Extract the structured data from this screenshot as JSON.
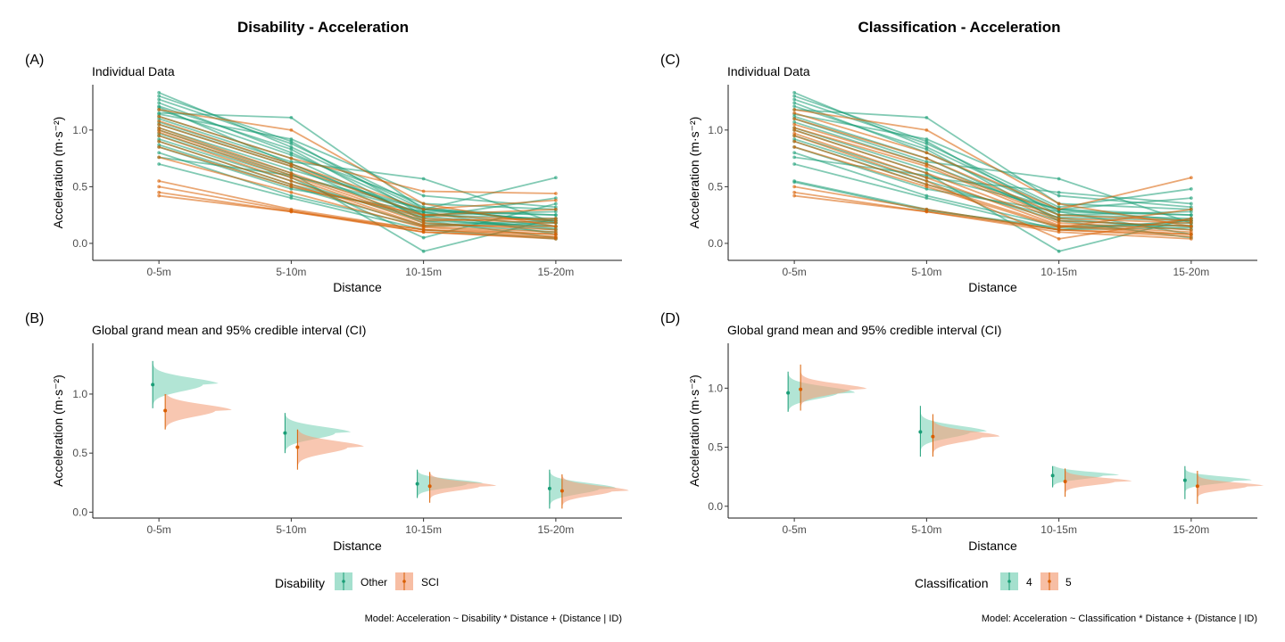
{
  "colors": {
    "other": "#1b9e77",
    "sci": "#d95f02",
    "other_fill": "#7fd3b9",
    "sci_fill": "#f4a27d"
  },
  "left": {
    "title": "Disability - Acceleration",
    "caption": "Model: Acceleration ~ Disability * Distance + (Distance | ID)",
    "legend": {
      "title": "Disability",
      "items": [
        "Other",
        "SCI"
      ]
    }
  },
  "right": {
    "title": "Classification - Acceleration",
    "caption": "Model: Acceleration ~ Classification * Distance + (Distance | ID)",
    "legend": {
      "title": "Classification",
      "items": [
        "4",
        "5"
      ]
    }
  },
  "chart_data": [
    {
      "id": "A",
      "tag": "(A)",
      "type": "line",
      "subtitle": "Individual Data",
      "xlabel": "Distance",
      "ylabel": "Acceleration (m·s⁻²)",
      "categories": [
        "0-5m",
        "5-10m",
        "10-15m",
        "15-20m"
      ],
      "ylim": [
        -0.15,
        1.4
      ],
      "yticks": [
        0.0,
        0.5,
        1.0
      ],
      "ytick_labels": [
        "0.0",
        "0.5",
        "1.0"
      ],
      "series": [
        {
          "group": "Other",
          "values": [
            1.33,
            0.85,
            0.3,
            0.2
          ]
        },
        {
          "group": "Other",
          "values": [
            1.3,
            0.9,
            0.25,
            0.22
          ]
        },
        {
          "group": "Other",
          "values": [
            1.27,
            0.88,
            0.32,
            0.18
          ]
        },
        {
          "group": "Other",
          "values": [
            1.24,
            0.8,
            0.28,
            0.25
          ]
        },
        {
          "group": "Other",
          "values": [
            1.21,
            0.83,
            0.2,
            0.15
          ]
        },
        {
          "group": "Other",
          "values": [
            1.18,
            0.78,
            0.35,
            0.3
          ]
        },
        {
          "group": "Other",
          "values": [
            1.15,
            1.11,
            0.3,
            0.2
          ]
        },
        {
          "group": "Other",
          "values": [
            1.12,
            0.75,
            0.22,
            0.12
          ]
        },
        {
          "group": "Other",
          "values": [
            1.1,
            0.72,
            0.57,
            0.18
          ]
        },
        {
          "group": "Other",
          "values": [
            1.07,
            0.7,
            0.25,
            0.28
          ]
        },
        {
          "group": "Other",
          "values": [
            1.05,
            0.68,
            0.18,
            0.1
          ]
        },
        {
          "group": "Other",
          "values": [
            1.02,
            0.65,
            0.3,
            0.58
          ]
        },
        {
          "group": "Other",
          "values": [
            1.0,
            0.62,
            -0.07,
            0.22
          ]
        },
        {
          "group": "Other",
          "values": [
            0.97,
            0.6,
            0.27,
            0.15
          ]
        },
        {
          "group": "Other",
          "values": [
            0.95,
            0.58,
            0.05,
            0.35
          ]
        },
        {
          "group": "Other",
          "values": [
            0.92,
            0.55,
            0.2,
            0.05
          ]
        },
        {
          "group": "Other",
          "values": [
            0.9,
            0.52,
            0.23,
            0.4
          ]
        },
        {
          "group": "Other",
          "values": [
            0.87,
            0.5,
            0.16,
            0.2
          ]
        },
        {
          "group": "Other",
          "values": [
            0.85,
            0.48,
            0.28,
            0.08
          ]
        },
        {
          "group": "Other",
          "values": [
            0.8,
            0.42,
            0.15,
            0.18
          ]
        },
        {
          "group": "Other",
          "values": [
            0.76,
            0.6,
            0.3,
            0.25
          ]
        },
        {
          "group": "Other",
          "values": [
            0.7,
            0.4,
            0.12,
            0.04
          ]
        },
        {
          "group": "Other",
          "values": [
            1.14,
            0.92,
            0.42,
            0.32
          ]
        },
        {
          "group": "Other",
          "values": [
            1.2,
            0.7,
            0.24,
            0.13
          ]
        },
        {
          "group": "SCI",
          "values": [
            1.18,
            1.0,
            0.35,
            0.15
          ]
        },
        {
          "group": "SCI",
          "values": [
            1.12,
            0.75,
            0.46,
            0.44
          ]
        },
        {
          "group": "SCI",
          "values": [
            1.08,
            0.7,
            0.3,
            0.38
          ]
        },
        {
          "group": "SCI",
          "values": [
            1.05,
            0.68,
            0.25,
            0.2
          ]
        },
        {
          "group": "SCI",
          "values": [
            1.02,
            0.62,
            0.22,
            0.18
          ]
        },
        {
          "group": "SCI",
          "values": [
            1.0,
            0.6,
            0.2,
            0.22
          ]
        },
        {
          "group": "SCI",
          "values": [
            0.98,
            0.58,
            0.18,
            0.12
          ]
        },
        {
          "group": "SCI",
          "values": [
            0.95,
            0.55,
            0.16,
            0.15
          ]
        },
        {
          "group": "SCI",
          "values": [
            0.9,
            0.52,
            0.15,
            0.1
          ]
        },
        {
          "group": "SCI",
          "values": [
            0.85,
            0.5,
            0.25,
            0.3
          ]
        },
        {
          "group": "SCI",
          "values": [
            0.76,
            0.45,
            0.14,
            0.08
          ]
        },
        {
          "group": "SCI",
          "values": [
            0.55,
            0.3,
            0.12,
            0.06
          ]
        },
        {
          "group": "SCI",
          "values": [
            0.5,
            0.29,
            0.1,
            0.05
          ]
        },
        {
          "group": "SCI",
          "values": [
            0.45,
            0.28,
            0.12,
            0.08
          ]
        },
        {
          "group": "SCI",
          "values": [
            0.42,
            0.28,
            0.1,
            0.04
          ]
        }
      ]
    },
    {
      "id": "C",
      "tag": "(C)",
      "type": "line",
      "subtitle": "Individual Data",
      "xlabel": "Distance",
      "ylabel": "Acceleration (m·s⁻²)",
      "categories": [
        "0-5m",
        "5-10m",
        "10-15m",
        "15-20m"
      ],
      "ylim": [
        -0.15,
        1.4
      ],
      "yticks": [
        0.0,
        0.5,
        1.0
      ],
      "ytick_labels": [
        "0.0",
        "0.5",
        "1.0"
      ],
      "series": [
        {
          "group": "4",
          "values": [
            1.33,
            0.85,
            0.3,
            0.2
          ]
        },
        {
          "group": "4",
          "values": [
            1.3,
            0.9,
            0.25,
            0.22
          ]
        },
        {
          "group": "4",
          "values": [
            1.27,
            0.88,
            0.32,
            0.48
          ]
        },
        {
          "group": "4",
          "values": [
            1.24,
            0.8,
            0.28,
            0.25
          ]
        },
        {
          "group": "4",
          "values": [
            1.21,
            0.83,
            0.2,
            0.15
          ]
        },
        {
          "group": "4",
          "values": [
            1.18,
            1.11,
            0.35,
            0.3
          ]
        },
        {
          "group": "4",
          "values": [
            1.12,
            0.75,
            0.22,
            0.12
          ]
        },
        {
          "group": "4",
          "values": [
            1.1,
            0.72,
            0.57,
            0.18
          ]
        },
        {
          "group": "4",
          "values": [
            1.07,
            0.7,
            0.25,
            0.28
          ]
        },
        {
          "group": "4",
          "values": [
            1.02,
            0.65,
            0.3,
            0.4
          ]
        },
        {
          "group": "4",
          "values": [
            1.0,
            0.62,
            -0.07,
            0.22
          ]
        },
        {
          "group": "4",
          "values": [
            0.95,
            0.58,
            0.45,
            0.35
          ]
        },
        {
          "group": "4",
          "values": [
            0.92,
            0.55,
            0.2,
            0.05
          ]
        },
        {
          "group": "4",
          "values": [
            0.9,
            0.52,
            0.23,
            0.2
          ]
        },
        {
          "group": "4",
          "values": [
            0.85,
            0.48,
            0.28,
            0.08
          ]
        },
        {
          "group": "4",
          "values": [
            0.8,
            0.42,
            0.15,
            0.18
          ]
        },
        {
          "group": "4",
          "values": [
            0.76,
            0.6,
            0.3,
            0.25
          ]
        },
        {
          "group": "4",
          "values": [
            0.7,
            0.4,
            0.12,
            0.14
          ]
        },
        {
          "group": "4",
          "values": [
            0.55,
            0.3,
            0.12,
            0.2
          ]
        },
        {
          "group": "4",
          "values": [
            0.54,
            0.29,
            0.14,
            0.16
          ]
        },
        {
          "group": "4",
          "values": [
            1.14,
            0.92,
            0.42,
            0.32
          ]
        },
        {
          "group": "5",
          "values": [
            1.18,
            1.0,
            0.35,
            0.15
          ]
        },
        {
          "group": "5",
          "values": [
            1.15,
            0.8,
            0.3,
            0.58
          ]
        },
        {
          "group": "5",
          "values": [
            1.1,
            0.75,
            0.25,
            0.2
          ]
        },
        {
          "group": "5",
          "values": [
            1.05,
            0.7,
            0.22,
            0.18
          ]
        },
        {
          "group": "5",
          "values": [
            1.02,
            0.68,
            0.2,
            0.15
          ]
        },
        {
          "group": "5",
          "values": [
            1.0,
            0.62,
            0.18,
            0.12
          ]
        },
        {
          "group": "5",
          "values": [
            0.97,
            0.58,
            0.16,
            0.1
          ]
        },
        {
          "group": "5",
          "values": [
            0.95,
            0.55,
            0.04,
            0.22
          ]
        },
        {
          "group": "5",
          "values": [
            0.9,
            0.52,
            0.15,
            0.08
          ]
        },
        {
          "group": "5",
          "values": [
            0.85,
            0.5,
            0.14,
            0.3
          ]
        },
        {
          "group": "5",
          "values": [
            0.5,
            0.3,
            0.12,
            0.06
          ]
        },
        {
          "group": "5",
          "values": [
            0.45,
            0.28,
            0.1,
            0.04
          ]
        },
        {
          "group": "5",
          "values": [
            0.42,
            0.28,
            0.12,
            0.08
          ]
        }
      ]
    },
    {
      "id": "B",
      "tag": "(B)",
      "type": "area",
      "subtitle": "Global grand mean and 95% credible interval (CI)",
      "xlabel": "Distance",
      "ylabel": "Acceleration (m·s⁻²)",
      "categories": [
        "0-5m",
        "5-10m",
        "10-15m",
        "15-20m"
      ],
      "ylim": [
        -0.05,
        1.43
      ],
      "yticks": [
        0.0,
        0.5,
        1.0
      ],
      "ytick_labels": [
        "0.0",
        "0.5",
        "1.0"
      ],
      "groups": [
        {
          "name": "Other",
          "mean": [
            1.08,
            0.67,
            0.24,
            0.2
          ],
          "lower": [
            0.88,
            0.5,
            0.12,
            0.03
          ],
          "upper": [
            1.28,
            0.84,
            0.36,
            0.36
          ],
          "sd": [
            0.055,
            0.05,
            0.035,
            0.045
          ]
        },
        {
          "name": "SCI",
          "mean": [
            0.86,
            0.55,
            0.22,
            0.18
          ],
          "lower": [
            0.7,
            0.36,
            0.08,
            0.03
          ],
          "upper": [
            1.0,
            0.7,
            0.34,
            0.32
          ],
          "sd": [
            0.05,
            0.05,
            0.035,
            0.04
          ]
        }
      ]
    },
    {
      "id": "D",
      "tag": "(D)",
      "type": "area",
      "subtitle": "Global grand mean and 95% credible interval (CI)",
      "xlabel": "Distance",
      "ylabel": "Acceleration (m·s⁻²)",
      "categories": [
        "0-5m",
        "5-10m",
        "10-15m",
        "15-20m"
      ],
      "ylim": [
        -0.1,
        1.38
      ],
      "yticks": [
        0.0,
        0.5,
        1.0
      ],
      "ytick_labels": [
        "0.0",
        "0.5",
        "1.0"
      ],
      "groups": [
        {
          "name": "4",
          "mean": [
            0.96,
            0.63,
            0.26,
            0.22
          ],
          "lower": [
            0.8,
            0.42,
            0.16,
            0.06
          ],
          "upper": [
            1.14,
            0.85,
            0.34,
            0.34
          ],
          "sd": [
            0.05,
            0.05,
            0.03,
            0.03
          ]
        },
        {
          "name": "5",
          "mean": [
            0.99,
            0.59,
            0.21,
            0.17
          ],
          "lower": [
            0.81,
            0.42,
            0.08,
            0.02
          ],
          "upper": [
            1.2,
            0.78,
            0.32,
            0.3
          ],
          "sd": [
            0.045,
            0.045,
            0.03,
            0.03
          ]
        }
      ]
    }
  ]
}
